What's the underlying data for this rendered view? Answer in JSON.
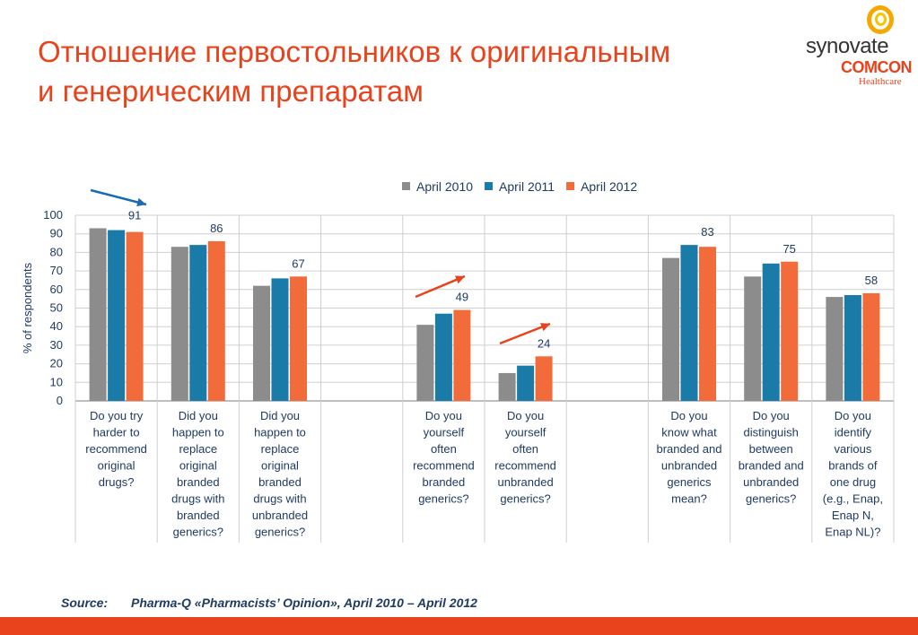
{
  "title_lines": [
    "Отношение первостольников к оригинальным",
    "и генерическим препаратам"
  ],
  "logo": {
    "brand": "synovate",
    "sub": "COMCON",
    "division": "Healthcare"
  },
  "source": {
    "label": "Source:",
    "text": "Pharma-Q «Pharmacists’ Opinion», April 2010 – April 2012"
  },
  "colors": {
    "title": "#e8431c",
    "footer": "#e8431c",
    "arrow_blue": "#1a6bb5",
    "arrow_red": "#e8431c"
  },
  "chart_data": {
    "type": "bar",
    "ylabel": "% of respondents",
    "ylim": [
      0,
      100
    ],
    "yticks": [
      0,
      10,
      20,
      30,
      40,
      50,
      60,
      70,
      80,
      90,
      100
    ],
    "grid": true,
    "legend_position": "top",
    "categories": [
      "Do you try harder to recommend original drugs?",
      "Did you happen to replace original branded drugs with branded generics?",
      "Did you happen to replace original branded drugs with unbranded generics?",
      "",
      "Do you yourself often recommend branded generics?",
      "Do you yourself often recommend unbranded generics?",
      "",
      "Do you know what branded and unbranded generics mean?",
      "Do you distinguish between branded and unbranded generics?",
      "Do you identify various brands of one drug (e.g., Enap, Enap N, Enap NL)?"
    ],
    "category_lines": [
      [
        "Do you try",
        "harder to",
        "recommend",
        "original",
        "drugs?"
      ],
      [
        "Did you",
        "happen to",
        "replace",
        "original",
        "branded",
        "drugs with",
        "branded",
        "generics?"
      ],
      [
        "Did you",
        "happen to",
        "replace",
        "original",
        "branded",
        "drugs with",
        "unbranded",
        "generics?"
      ],
      [],
      [
        "Do you",
        "yourself",
        "often",
        "recommend",
        "branded",
        "generics?"
      ],
      [
        "Do you",
        "yourself",
        "often",
        "recommend",
        "unbranded",
        "generics?"
      ],
      [],
      [
        "Do you",
        "know what",
        "branded and",
        "unbranded",
        "generics",
        "mean?"
      ],
      [
        "Do you",
        "distinguish",
        "between",
        "branded and",
        "unbranded",
        "generics?"
      ],
      [
        "Do you",
        "identify",
        "various",
        "brands of",
        "one drug",
        "(e.g., Enap,",
        "Enap N,",
        "Enap NL)?"
      ]
    ],
    "series": [
      {
        "name": "April 2010",
        "color": "#8c8c8c",
        "values": [
          93,
          83,
          62,
          null,
          41,
          15,
          null,
          77,
          67,
          56
        ]
      },
      {
        "name": "April 2011",
        "color": "#1a7aa8",
        "values": [
          92,
          84,
          66,
          null,
          47,
          19,
          null,
          84,
          74,
          57
        ]
      },
      {
        "name": "April 2012",
        "color": "#f26b3a",
        "values": [
          91,
          86,
          67,
          null,
          49,
          24,
          null,
          83,
          75,
          58
        ]
      }
    ],
    "data_labels": [
      91,
      86,
      67,
      null,
      49,
      24,
      null,
      83,
      75,
      58
    ]
  }
}
